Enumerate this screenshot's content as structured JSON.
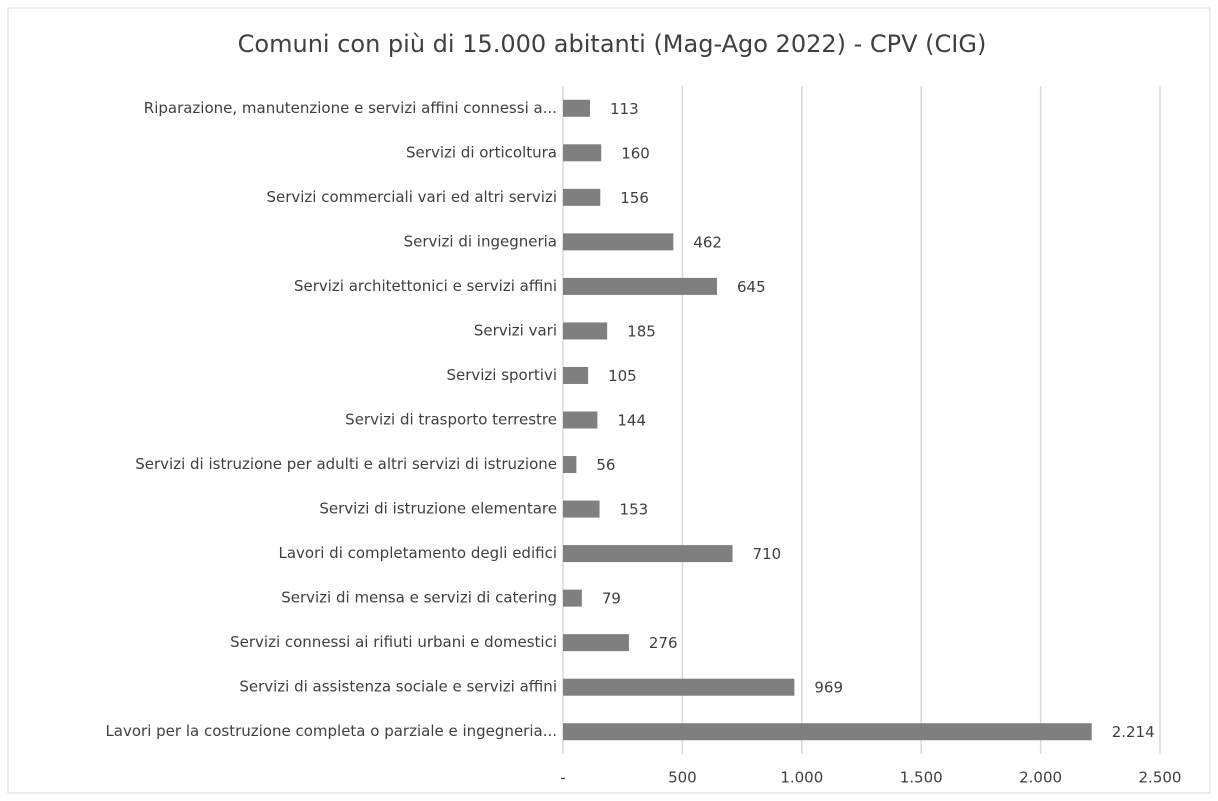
{
  "chart_data": {
    "type": "hbar",
    "title": "Comuni con più di 15.000 abitanti (Mag-Ago 2022) - CPV (CIG)",
    "categories": [
      "Riparazione, manutenzione e servizi affini connessi a...",
      "Servizi di orticoltura",
      "Servizi commerciali vari ed altri servizi",
      "Servizi di ingegneria",
      "Servizi architettonici e servizi affini",
      "Servizi vari",
      "Servizi sportivi",
      "Servizi di trasporto terrestre",
      "Servizi di istruzione per adulti e altri servizi di istruzione",
      "Servizi di istruzione elementare",
      "Lavori di completamento degli edifici",
      "Servizi di mensa e servizi di catering",
      "Servizi connessi ai rifiuti urbani e domestici",
      "Servizi di assistenza sociale e servizi affini",
      "Lavori per la costruzione completa o parziale e ingegneria..."
    ],
    "values": [
      113,
      160,
      156,
      462,
      645,
      185,
      105,
      144,
      56,
      153,
      710,
      79,
      276,
      969,
      2214
    ],
    "value_labels": [
      "113",
      "160",
      "156",
      "462",
      "645",
      "185",
      "105",
      "144",
      "56",
      "153",
      "710",
      "79",
      "276",
      "969",
      "2.214"
    ],
    "color": "#7f7f7f",
    "xlim": [
      0,
      2500
    ],
    "xticks": [
      {
        "value": 0,
        "label": "-"
      },
      500,
      {
        "value": 1000,
        "label": "1.000"
      },
      {
        "value": 1500,
        "label": "1.500"
      },
      {
        "value": 2000,
        "label": "2.000"
      },
      {
        "value": 2500,
        "label": "2.500"
      }
    ],
    "grid": true
  }
}
